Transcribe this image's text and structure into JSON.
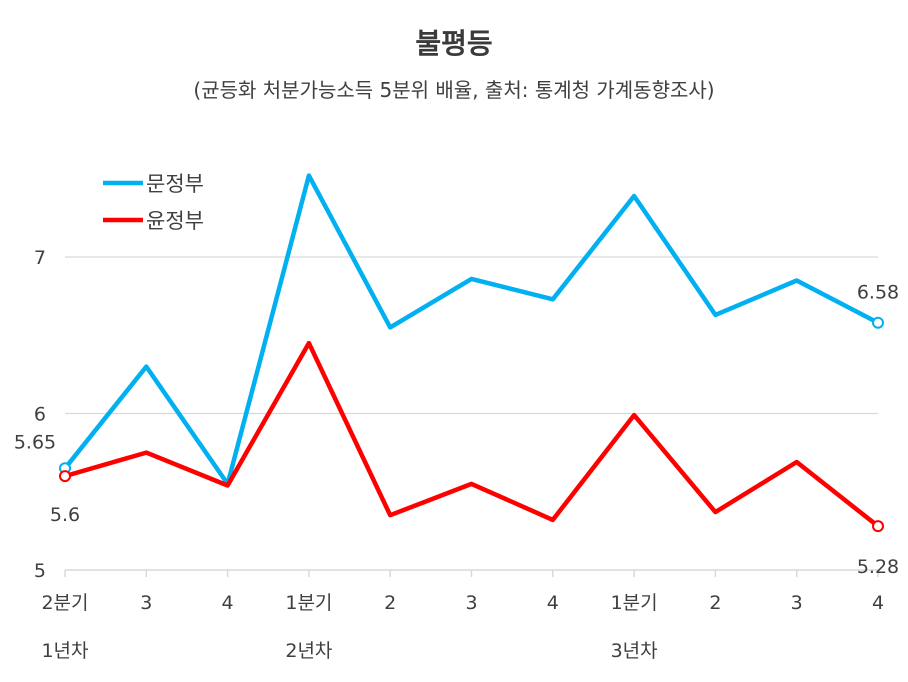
{
  "chart_data": {
    "type": "line",
    "title": "불평등",
    "subtitle": "(균등화 처분가능소득 5분위 배율, 출처: 통계청 가계동향조사)",
    "categories": [
      "2분기",
      "3",
      "4",
      "1분기",
      "2",
      "3",
      "4",
      "1분기",
      "2",
      "3",
      "4"
    ],
    "groups": [
      {
        "label": "1년차",
        "start_index": 0
      },
      {
        "label": "2년차",
        "start_index": 3
      },
      {
        "label": "3년차",
        "start_index": 7
      }
    ],
    "series": [
      {
        "name": "문정부",
        "color": "#00b0f0",
        "values": [
          5.65,
          6.3,
          5.55,
          7.52,
          6.55,
          6.86,
          6.73,
          7.39,
          6.63,
          6.85,
          6.58
        ]
      },
      {
        "name": "윤정부",
        "color": "#ff0000",
        "values": [
          5.6,
          5.75,
          5.54,
          6.45,
          5.35,
          5.55,
          5.32,
          5.99,
          5.37,
          5.69,
          5.28
        ]
      }
    ],
    "yticks": [
      5,
      6,
      7
    ],
    "ylim": [
      5,
      7.6
    ],
    "grid": true,
    "legend_position": "top-left",
    "point_labels": [
      {
        "series": 0,
        "index": 0,
        "text": "5.65"
      },
      {
        "series": 1,
        "index": 0,
        "text": "5.6"
      },
      {
        "series": 0,
        "index": 10,
        "text": "6.58"
      },
      {
        "series": 1,
        "index": 10,
        "text": "5.28"
      }
    ]
  }
}
